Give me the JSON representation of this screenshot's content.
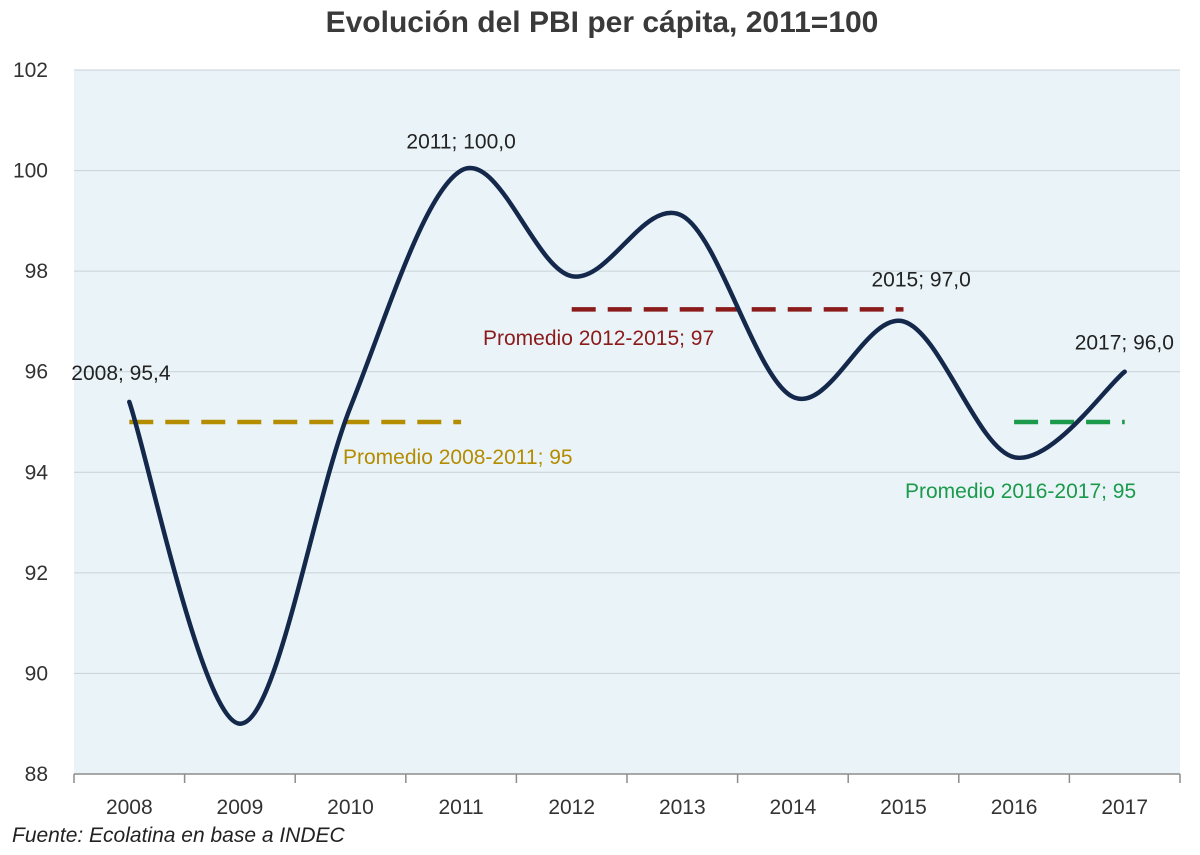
{
  "chart_data": {
    "type": "line",
    "title": "Evolución del PBI per cápita, 2011=100",
    "categories": [
      "2008",
      "2009",
      "2010",
      "2011",
      "2012",
      "2013",
      "2014",
      "2015",
      "2016",
      "2017"
    ],
    "series": [
      {
        "values": [
          95.4,
          89.0,
          95.3,
          100.0,
          97.9,
          99.1,
          95.5,
          97.0,
          94.3,
          96.0
        ],
        "color": "#14284b"
      }
    ],
    "ylim": [
      88,
      102
    ],
    "yticks": [
      "88",
      "90",
      "92",
      "94",
      "96",
      "98",
      "100",
      "102"
    ],
    "grid": true,
    "plot_background": "#eaf4f8",
    "data_labels": [
      {
        "category": "2008",
        "text": "2008; 95,4"
      },
      {
        "category": "2011",
        "text": "2011; 100,0"
      },
      {
        "category": "2015",
        "text": "2015; 97,0"
      },
      {
        "category": "2017",
        "text": "2017; 96,0"
      }
    ],
    "averages": [
      {
        "label": "Promedio 2008-2011; 95",
        "value": 95,
        "from": "2008",
        "to": "2011",
        "color": "#b48c00"
      },
      {
        "label": "Promedio 2012-2015; 97",
        "value": 97,
        "from": "2012",
        "to": "2015",
        "color": "#8b1a1a"
      },
      {
        "label": "Promedio 2016-2017; 95",
        "value": 95,
        "from": "2016",
        "to": "2017",
        "color": "#1a9a4a"
      }
    ]
  },
  "source": "Fuente: Ecolatina en base a INDEC"
}
